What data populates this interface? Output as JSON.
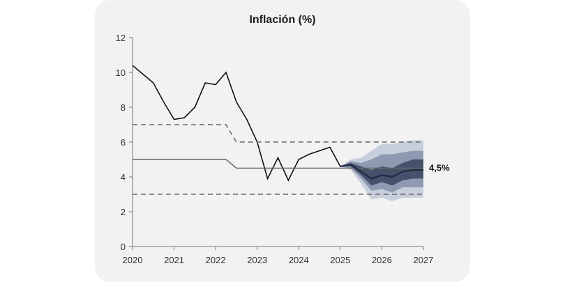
{
  "chart_data": {
    "type": "line",
    "title": "Inflación (%)",
    "xlabel": "",
    "ylabel": "",
    "xlim": [
      2020,
      2027
    ],
    "ylim": [
      0,
      12
    ],
    "y_ticks": [
      0,
      2,
      4,
      6,
      8,
      10,
      12
    ],
    "x_ticks": [
      2020,
      2021,
      2022,
      2023,
      2024,
      2025,
      2026,
      2027
    ],
    "x_tick_labels": [
      "2020",
      "2021",
      "2022",
      "2023",
      "2024",
      "2025",
      "2026",
      "2027"
    ],
    "grid": false,
    "series": [
      {
        "style": "solid-black",
        "x": [
          2020.0,
          2020.25,
          2020.5,
          2020.75,
          2021.0,
          2021.25,
          2021.5,
          2021.75,
          2022.0,
          2022.25,
          2022.5,
          2022.75,
          2023.0,
          2023.25,
          2023.5,
          2023.75,
          2024.0,
          2024.25,
          2024.5,
          2024.75,
          2025.0
        ],
        "y": [
          10.4,
          9.9,
          9.4,
          8.3,
          7.3,
          7.4,
          8.0,
          9.4,
          9.3,
          10.0,
          8.3,
          7.3,
          6.0,
          3.9,
          5.1,
          3.8,
          5.0,
          5.3,
          5.5,
          5.7,
          4.6
        ]
      },
      {
        "style": "solid-gray-target",
        "x": [
          2020.0,
          2022.25,
          2022.5,
          2027.0
        ],
        "y": [
          5.0,
          5.0,
          4.5,
          4.5
        ]
      },
      {
        "style": "dashed-upper-band",
        "x": [
          2020.0,
          2022.25,
          2022.5,
          2027.0
        ],
        "y": [
          7.0,
          7.0,
          6.0,
          6.0
        ]
      },
      {
        "style": "dashed-lower-band",
        "x": [
          2020.0,
          2027.0
        ],
        "y": [
          3.0,
          3.0
        ]
      },
      {
        "style": "forecast-central",
        "x": [
          2025.0,
          2025.25,
          2025.5,
          2025.75,
          2026.0,
          2026.25,
          2026.5,
          2026.75,
          2027.0
        ],
        "y": [
          4.6,
          4.7,
          4.3,
          3.9,
          4.1,
          4.0,
          4.3,
          4.4,
          4.4
        ]
      }
    ],
    "fan_chart": {
      "x": [
        2025.0,
        2025.25,
        2025.5,
        2025.75,
        2026.0,
        2026.25,
        2026.5,
        2026.75,
        2027.0
      ],
      "bands": [
        {
          "color": "#c8cfdc",
          "lower": [
            4.6,
            4.4,
            3.6,
            2.7,
            2.8,
            2.6,
            2.8,
            2.8,
            2.8
          ],
          "upper": [
            4.6,
            5.0,
            5.1,
            5.5,
            5.9,
            5.9,
            6.0,
            6.1,
            6.1
          ]
        },
        {
          "color": "#8e9ab1",
          "lower": [
            4.6,
            4.5,
            3.9,
            3.2,
            3.3,
            3.1,
            3.4,
            3.4,
            3.4
          ],
          "upper": [
            4.6,
            4.9,
            4.8,
            5.0,
            5.3,
            5.3,
            5.4,
            5.5,
            5.5
          ]
        },
        {
          "color": "#46526b",
          "lower": [
            4.6,
            4.6,
            4.1,
            3.5,
            3.7,
            3.5,
            3.8,
            3.9,
            3.9
          ],
          "upper": [
            4.6,
            4.8,
            4.6,
            4.4,
            4.6,
            4.5,
            4.8,
            5.0,
            5.0
          ]
        }
      ]
    },
    "annotations": [
      {
        "text": "4,5%",
        "x": 2027.0,
        "y": 4.5
      }
    ]
  }
}
